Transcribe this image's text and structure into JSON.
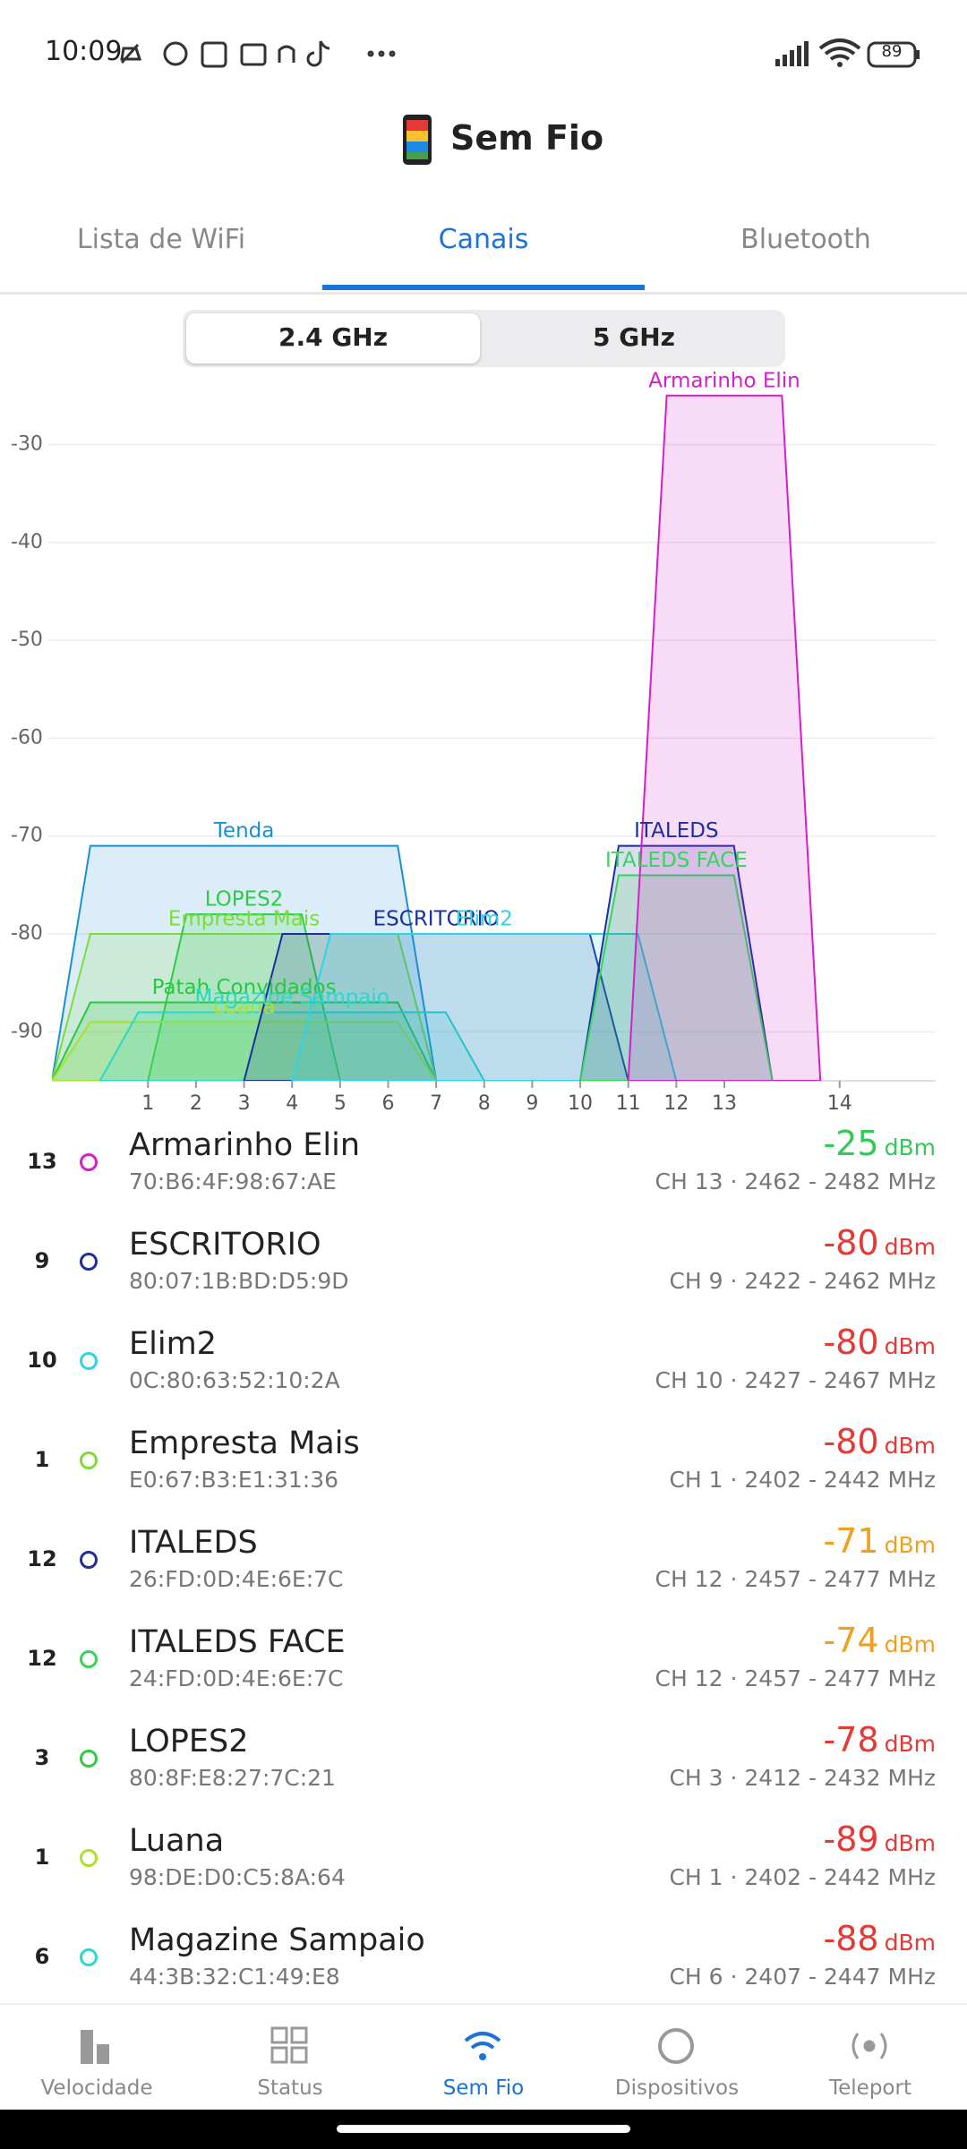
{
  "status_bar": {
    "time": "10:09",
    "battery": "89"
  },
  "header": {
    "title": "Sem Fio"
  },
  "tabs": {
    "items": [
      "Lista de WiFi",
      "Canais",
      "Bluetooth"
    ],
    "active": 1
  },
  "band_toggle": {
    "options": [
      "2.4 GHz",
      "5 GHz"
    ],
    "selected": 0
  },
  "chart_data": {
    "type": "channel",
    "ylim": [
      -95,
      -22
    ],
    "yticks": [
      -30,
      -40,
      -50,
      -60,
      -70,
      -80,
      -90
    ],
    "xlim": [
      2402,
      2494
    ],
    "xticks": [
      {
        "value": 2412,
        "label": "1"
      },
      {
        "value": 2417,
        "label": "2"
      },
      {
        "value": 2422,
        "label": "3"
      },
      {
        "value": 2427,
        "label": "4"
      },
      {
        "value": 2432,
        "label": "5"
      },
      {
        "value": 2437,
        "label": "6"
      },
      {
        "value": 2442,
        "label": "7"
      },
      {
        "value": 2447,
        "label": "8"
      },
      {
        "value": 2452,
        "label": "9"
      },
      {
        "value": 2457,
        "label": "10"
      },
      {
        "value": 2462,
        "label": "11"
      },
      {
        "value": 2467,
        "label": "12"
      },
      {
        "value": 2472,
        "label": "13"
      },
      {
        "value": 2484,
        "label": "14"
      }
    ],
    "grid": true,
    "series": [
      {
        "name": "Tenda",
        "color": "#1a8fd6",
        "range": [
          2402,
          2442
        ],
        "value": -71
      },
      {
        "name": "Empresta Mais",
        "color": "#7ddc3c",
        "range": [
          2402,
          2442
        ],
        "value": -80
      },
      {
        "name": "LOPES2",
        "color": "#2ecc40",
        "range": [
          2412,
          2432
        ],
        "value": -78
      },
      {
        "name": "Patah Convidados",
        "color": "#27c93f",
        "range": [
          2402,
          2442
        ],
        "value": -87
      },
      {
        "name": "Luana",
        "color": "#a6e22e",
        "range": [
          2402,
          2442
        ],
        "value": -89
      },
      {
        "name": "Magazine Sampaio",
        "color": "#2bd9c8",
        "range": [
          2407,
          2447
        ],
        "value": -88
      },
      {
        "name": "ESCRITORIO",
        "color": "#1b2f9e",
        "range": [
          2422,
          2462
        ],
        "value": -80
      },
      {
        "name": "Elim2",
        "color": "#2ed3e6",
        "range": [
          2427,
          2467
        ],
        "value": -80
      },
      {
        "name": "ITALEDS",
        "color": "#1b2f9e",
        "range": [
          2457,
          2477
        ],
        "value": -71
      },
      {
        "name": "ITALEDS FACE",
        "color": "#33d65a",
        "range": [
          2457,
          2477
        ],
        "value": -74
      },
      {
        "name": "Armarinho Elin",
        "color": "#d61fc6",
        "range": [
          2462,
          2482
        ],
        "value": -25
      }
    ]
  },
  "networks": {
    "signal_unit": "dBm",
    "items": [
      {
        "channel": 13,
        "name": "Armarinho Elin",
        "mac": "70:B6:4F:98:67:AE",
        "signal": -25,
        "info": "CH 13 · 2462 - 2482 MHz",
        "color": "#d61fc6",
        "signal_color": "#34c759"
      },
      {
        "channel": 9,
        "name": "ESCRITORIO",
        "mac": "80:07:1B:BD:D5:9D",
        "signal": -80,
        "info": "CH 9 · 2422 - 2462 MHz",
        "color": "#1b2f9e",
        "signal_color": "#e53935"
      },
      {
        "channel": 10,
        "name": "Elim2",
        "mac": "0C:80:63:52:10:2A",
        "signal": -80,
        "info": "CH 10 · 2427 - 2467 MHz",
        "color": "#2ed3e6",
        "signal_color": "#e53935"
      },
      {
        "channel": 1,
        "name": "Empresta Mais",
        "mac": "E0:67:B3:E1:31:36",
        "signal": -80,
        "info": "CH 1 · 2402 - 2442 MHz",
        "color": "#7ddc3c",
        "signal_color": "#e53935"
      },
      {
        "channel": 12,
        "name": "ITALEDS",
        "mac": "26:FD:0D:4E:6E:7C",
        "signal": -71,
        "info": "CH 12 · 2457 - 2477 MHz",
        "color": "#1b2f9e",
        "signal_color": "#f0a020"
      },
      {
        "channel": 12,
        "name": "ITALEDS FACE",
        "mac": "24:FD:0D:4E:6E:7C",
        "signal": -74,
        "info": "CH 12 · 2457 - 2477 MHz",
        "color": "#33d65a",
        "signal_color": "#f0a020"
      },
      {
        "channel": 3,
        "name": "LOPES2",
        "mac": "80:8F:E8:27:7C:21",
        "signal": -78,
        "info": "CH 3 · 2412 - 2432 MHz",
        "color": "#2ecc40",
        "signal_color": "#e53935"
      },
      {
        "channel": 1,
        "name": "Luana",
        "mac": "98:DE:D0:C5:8A:64",
        "signal": -89,
        "info": "CH 1 · 2402 - 2442 MHz",
        "color": "#a6e22e",
        "signal_color": "#e53935"
      },
      {
        "channel": 6,
        "name": "Magazine Sampaio",
        "mac": "44:3B:32:C1:49:E8",
        "signal": -88,
        "info": "CH 6 · 2407 - 2447 MHz",
        "color": "#2bd9c8",
        "signal_color": "#e53935"
      }
    ]
  },
  "bottom_nav": {
    "items": [
      "Velocidade",
      "Status",
      "Sem Fio",
      "Dispositivos",
      "Teleport"
    ],
    "active": 2
  }
}
